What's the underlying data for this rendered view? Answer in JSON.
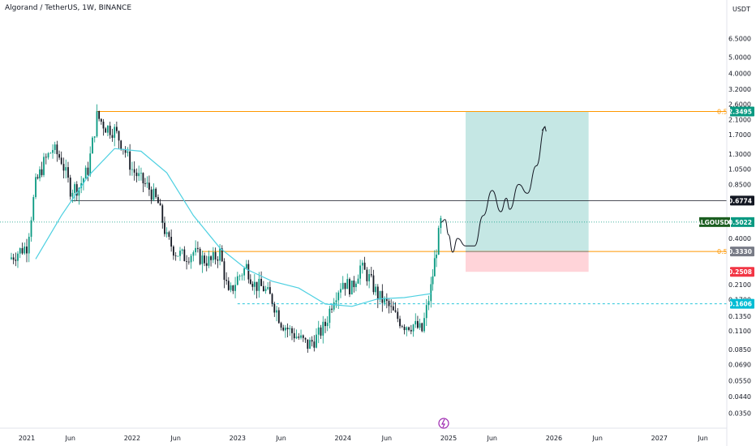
{
  "header": {
    "symbol_title": "Algorand / TetherUS, 1W, BINANCE"
  },
  "colors": {
    "up": "#089981",
    "down": "#131722",
    "ma": "#4dd0e1",
    "fib": "#ff9800",
    "long_zone": "#b2dfdb",
    "stop_zone": "#ffcdd2",
    "hline": "#131722",
    "cyan_line": "#26c6da",
    "symbol_tag": "#1b5e20",
    "stop_tag": "#f23645",
    "level_tag": "#131722",
    "cyan_tag": "#00bcd4"
  },
  "chart_data": {
    "type": "candlestick",
    "title": "Algorand / TetherUS, 1W, BINANCE",
    "y_unit": "USDT",
    "y_scale": "log",
    "ylim": [
      0.031,
      9.5
    ],
    "y_ticks": [
      "6.5000",
      "5.0000",
      "4.0000",
      "3.2000",
      "2.6000",
      "2.1000",
      "1.7000",
      "1.3000",
      "1.0500",
      "0.8500",
      "0.4000",
      "0.2100",
      "0.1700",
      "0.1350",
      "0.1100",
      "0.0850",
      "0.0690",
      "0.0550",
      "0.0440",
      "0.0350"
    ],
    "x_ticks": [
      "2021",
      "Jun",
      "2022",
      "Jun",
      "2023",
      "Jun",
      "2024",
      "Jun",
      "2025",
      "Jun",
      "2026",
      "Jun",
      "2027",
      "Jun"
    ],
    "x_tick_dates": [
      "2021-01",
      "2021-06",
      "2022-01",
      "2022-06",
      "2023-01",
      "2023-06",
      "2024-01",
      "2024-06",
      "2025-01",
      "2025-06",
      "2026-01",
      "2026-06",
      "2027-01",
      "2027-06"
    ],
    "price_path": [
      [
        "2020-11",
        0.3
      ],
      [
        "2020-12",
        0.33
      ],
      [
        "2021-01",
        0.36
      ],
      [
        "2021-02",
        0.85
      ],
      [
        "2021-03",
        1.15
      ],
      [
        "2021-04",
        1.4
      ],
      [
        "2021-05",
        1.2
      ],
      [
        "2021-06",
        0.8
      ],
      [
        "2021-07",
        0.82
      ],
      [
        "2021-08",
        1.05
      ],
      [
        "2021-09",
        2.2
      ],
      [
        "2021-10",
        1.9
      ],
      [
        "2021-11",
        1.8
      ],
      [
        "2021-12",
        1.45
      ],
      [
        "2022-01",
        1.05
      ],
      [
        "2022-02",
        0.9
      ],
      [
        "2022-03",
        0.8
      ],
      [
        "2022-04",
        0.65
      ],
      [
        "2022-05",
        0.4
      ],
      [
        "2022-06",
        0.33
      ],
      [
        "2022-07",
        0.31
      ],
      [
        "2022-08",
        0.33
      ],
      [
        "2022-09",
        0.3
      ],
      [
        "2022-10",
        0.29
      ],
      [
        "2022-11",
        0.33
      ],
      [
        "2022-12",
        0.18
      ],
      [
        "2023-01",
        0.23
      ],
      [
        "2023-02",
        0.27
      ],
      [
        "2023-03",
        0.21
      ],
      [
        "2023-04",
        0.2
      ],
      [
        "2023-05",
        0.17
      ],
      [
        "2023-06",
        0.125
      ],
      [
        "2023-07",
        0.11
      ],
      [
        "2023-08",
        0.1
      ],
      [
        "2023-09",
        0.09
      ],
      [
        "2023-10",
        0.1
      ],
      [
        "2023-11",
        0.12
      ],
      [
        "2023-12",
        0.18
      ],
      [
        "2024-01",
        0.22
      ],
      [
        "2024-02",
        0.2
      ],
      [
        "2024-03",
        0.27
      ],
      [
        "2024-04",
        0.23
      ],
      [
        "2024-05",
        0.18
      ],
      [
        "2024-06",
        0.16
      ],
      [
        "2024-07",
        0.135
      ],
      [
        "2024-08",
        0.12
      ],
      [
        "2024-09",
        0.12
      ],
      [
        "2024-10",
        0.11
      ],
      [
        "2024-11",
        0.2
      ],
      [
        "2024-11-20",
        0.35
      ],
      [
        "2024-12-05",
        0.5
      ]
    ],
    "moving_average": [
      [
        "2021-02",
        0.3
      ],
      [
        "2021-05",
        0.55
      ],
      [
        "2021-08",
        0.95
      ],
      [
        "2021-11",
        1.4
      ],
      [
        "2022-02",
        1.35
      ],
      [
        "2022-05",
        1.0
      ],
      [
        "2022-08",
        0.55
      ],
      [
        "2022-11",
        0.35
      ],
      [
        "2023-02",
        0.26
      ],
      [
        "2023-05",
        0.22
      ],
      [
        "2023-08",
        0.2
      ],
      [
        "2023-11",
        0.16
      ],
      [
        "2024-02",
        0.155
      ],
      [
        "2024-05",
        0.172
      ],
      [
        "2024-08",
        0.175
      ],
      [
        "2024-11",
        0.185
      ]
    ],
    "projection_path": [
      [
        "2024-12-05",
        0.5
      ],
      [
        "2024-12-20",
        0.52
      ],
      [
        "2025-01",
        0.42
      ],
      [
        "2025-01-15",
        0.33
      ],
      [
        "2025-02",
        0.4
      ],
      [
        "2025-03",
        0.36
      ],
      [
        "2025-04",
        0.36
      ],
      [
        "2025-05",
        0.55
      ],
      [
        "2025-06",
        0.78
      ],
      [
        "2025-07",
        0.58
      ],
      [
        "2025-07-20",
        0.7
      ],
      [
        "2025-08",
        0.6
      ],
      [
        "2025-09",
        0.85
      ],
      [
        "2025-10",
        0.75
      ],
      [
        "2025-11",
        1.1
      ],
      [
        "2025-12",
        1.9
      ]
    ],
    "levels": {
      "fib_upper": 2.3495,
      "fib_lower": 0.333,
      "resistance": 0.6774,
      "current": 0.5022,
      "stop": 0.2508,
      "support": 0.1606
    },
    "position_box": {
      "start": "2025-03",
      "end": "2026-05",
      "entry": 0.333,
      "target": 2.3495,
      "stop": 0.2508
    },
    "labels": {
      "symbol": "ALGOUSDT",
      "current": "0.5022",
      "target": "2.3495",
      "resistance": "0.6774",
      "entry": "0.3330",
      "stop": "0.2508",
      "support": "0.1606",
      "fib_upper": "0.5",
      "fib_lower": "0.5"
    }
  }
}
